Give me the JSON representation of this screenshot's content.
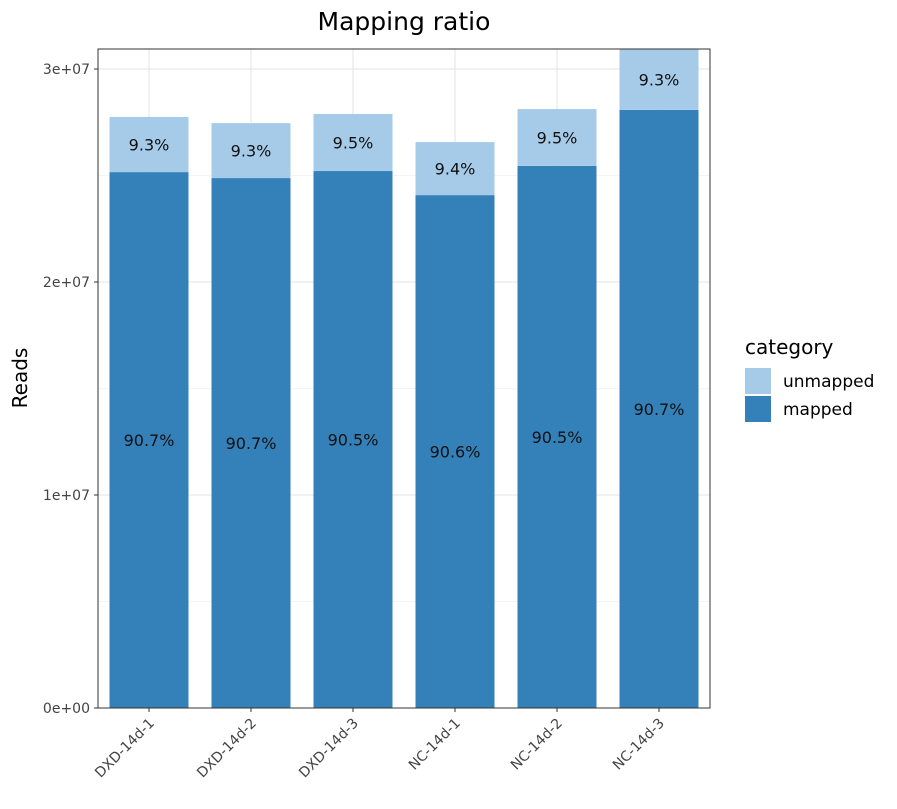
{
  "chart_data": {
    "type": "bar",
    "stacked": true,
    "title": "Mapping ratio",
    "xlabel": "",
    "ylabel": "Reads",
    "ylim": [
      0,
      30940000
    ],
    "yticks": [
      0,
      10000000,
      20000000,
      30000000
    ],
    "ytick_labels": [
      "0e+00",
      "1e+07",
      "2e+07",
      "3e+07"
    ],
    "grid": true,
    "categories": [
      "DXD-14d-1",
      "DXD-14d-2",
      "DXD-14d-3",
      "NC-14d-1",
      "NC-14d-2",
      "NC-14d-3"
    ],
    "series": [
      {
        "name": "mapped",
        "color": "#3480b8",
        "values": [
          25160000,
          24880000,
          25210000,
          24080000,
          25450000,
          28080000
        ],
        "labels": [
          "90.7%",
          "90.7%",
          "90.5%",
          "90.6%",
          "90.5%",
          "90.7%"
        ]
      },
      {
        "name": "unmapped",
        "color": "#a6cbe9",
        "values": [
          2590000,
          2580000,
          2680000,
          2490000,
          2670000,
          2880000
        ],
        "labels": [
          "9.3%",
          "9.3%",
          "9.5%",
          "9.4%",
          "9.5%",
          "9.3%"
        ]
      }
    ],
    "legend": {
      "title": "category",
      "placement": "right",
      "entries": [
        "unmapped",
        "mapped"
      ]
    }
  }
}
